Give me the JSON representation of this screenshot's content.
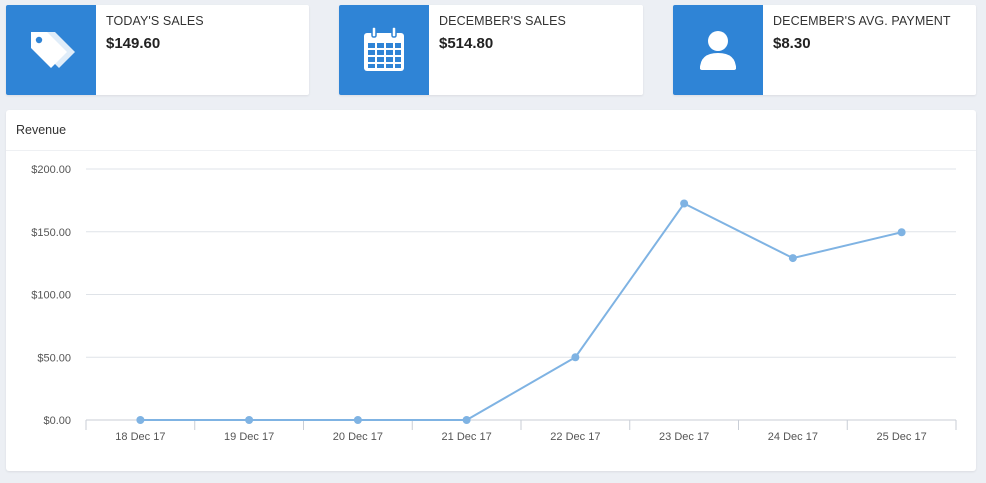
{
  "colors": {
    "accent": "#2f84d6",
    "line": "#7fb3e3",
    "grid": "#dfe3e8",
    "background": "#eceff4"
  },
  "stats": [
    {
      "label": "TODAY'S SALES",
      "value": "$149.60",
      "icon": "price-tags-icon"
    },
    {
      "label": "DECEMBER'S SALES",
      "value": "$514.80",
      "icon": "calendar-icon"
    },
    {
      "label": "DECEMBER'S AVG. PAYMENT",
      "value": "$8.30",
      "icon": "user-icon"
    }
  ],
  "chart": {
    "title": "Revenue"
  },
  "chart_data": {
    "type": "line",
    "categories": [
      "18 Dec 17",
      "19 Dec 17",
      "20 Dec 17",
      "21 Dec 17",
      "22 Dec 17",
      "23 Dec 17",
      "24 Dec 17",
      "25 Dec 17"
    ],
    "values": [
      0,
      0,
      0,
      0,
      50,
      172.5,
      129,
      149.6
    ],
    "yticks": [
      "$0.00",
      "$50.00",
      "$100.00",
      "$150.00",
      "$200.00"
    ],
    "ytick_values": [
      0,
      50,
      100,
      150,
      200
    ],
    "ylim": [
      0,
      200
    ],
    "grid": true,
    "legend": "none"
  }
}
